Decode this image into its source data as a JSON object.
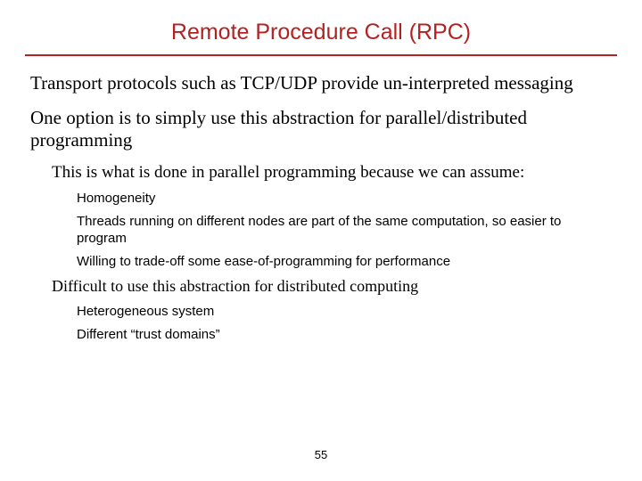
{
  "title": "Remote Procedure Call (RPC)",
  "colors": {
    "title": "#b22222",
    "rule": "#b22222",
    "text": "#000000",
    "background": "#ffffff"
  },
  "body": {
    "para1": "Transport protocols such as TCP/UDP provide un-interpreted messaging",
    "para2": "One option is to simply use this abstraction for parallel/distributed programming",
    "sub1": "This is what is done in parallel programming because we can assume:",
    "sub1_items": {
      "a": "Homogeneity",
      "b": "Threads running on different nodes are part of the same computation, so easier to program",
      "c": "Willing to trade-off some ease-of-programming for performance"
    },
    "sub2": "Difficult to use this abstraction for distributed computing",
    "sub2_items": {
      "a": "Heterogeneous system",
      "b": "Different “trust domains”"
    }
  },
  "page_number": "55"
}
